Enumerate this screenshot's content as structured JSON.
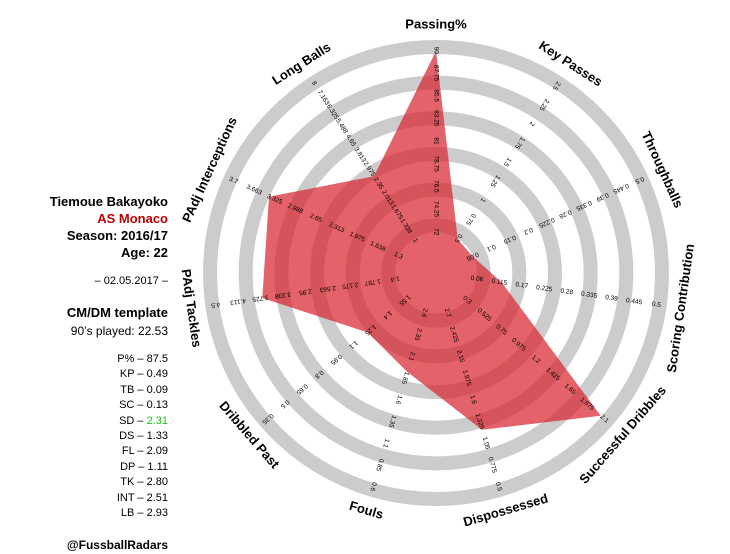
{
  "player": {
    "name": "Tiemoue Bakayoko",
    "team": "AS Monaco",
    "season": "Season: 2016/17",
    "age": "Age: 22",
    "date": "– 02.05.2017 –",
    "template": "CM/DM template",
    "played": "90’s played: 22.53",
    "handle": "@FussballRadars"
  },
  "stats": [
    {
      "label": "P% – ",
      "value": "87.5"
    },
    {
      "label": "KP – ",
      "value": "0.49"
    },
    {
      "label": "TB – ",
      "value": "0.09"
    },
    {
      "label": "SC – ",
      "value": "0.13"
    },
    {
      "label": "SD – ",
      "value": "2.31",
      "highlight": "#22c21a"
    },
    {
      "label": "DS – ",
      "value": "1.33"
    },
    {
      "label": "FL – ",
      "value": "2.09"
    },
    {
      "label": "DP – ",
      "value": "1.11"
    },
    {
      "label": "TK – ",
      "value": "2.80"
    },
    {
      "label": "INT – ",
      "value": "2.51"
    },
    {
      "label": "LB – ",
      "value": "2.93"
    }
  ],
  "chart_data": {
    "type": "radar",
    "ring_color": "#cccccc",
    "fill_color": "#d9202a",
    "fill_opacity": 0.7,
    "ring_count": 6,
    "axes": [
      {
        "label": "Passing%",
        "ticks": [
          "72",
          "74.25",
          "76.5",
          "78.75",
          "81",
          "83.25",
          "85.5",
          "87.75",
          "90"
        ],
        "value": 87.5
      },
      {
        "label": "Key Passes",
        "ticks": [
          "0.5",
          "0.75",
          "1",
          "1.25",
          "1.5",
          "1.75",
          "2",
          "2.25",
          "2.5"
        ],
        "value": 0.49
      },
      {
        "label": "Throughballs",
        "ticks": [
          "0.05",
          "0.1",
          "0.15",
          "0.2",
          "0.225",
          "0.28",
          "0.335",
          "0.39",
          "0.445",
          "0.5"
        ],
        "value": 0.09
      },
      {
        "label": "Scoring Contribution",
        "ticks": [
          "0.06",
          "0.115",
          "0.17",
          "0.225",
          "0.28",
          "0.335",
          "0.39",
          "0.445",
          "0.5"
        ],
        "value": 0.13
      },
      {
        "label": "Successful Dribbles",
        "ticks": [
          "0.3",
          "0.525",
          "0.75",
          "0.975",
          "1.2",
          "1.425",
          "1.65",
          "1.875",
          "2.1"
        ],
        "value": 2.31
      },
      {
        "label": "Dispossessed",
        "ticks": [
          "2.7",
          "2.425",
          "2.15",
          "1.875",
          "1.6",
          "1.325",
          "1.05",
          "0.775",
          "0.5"
        ],
        "value": 1.33
      },
      {
        "label": "Fouls",
        "ticks": [
          "2.6",
          "2.35",
          "2.1",
          "1.85",
          "1.6",
          "1.35",
          "1.1",
          "0.85",
          "0.6"
        ],
        "value": 2.09
      },
      {
        "label": "Dribbled Past",
        "ticks": [
          "1.55",
          "1.4",
          "1.25",
          "1.1",
          "0.95",
          "0.8",
          "0.65",
          "0.5",
          "0.35"
        ],
        "value": 1.11
      },
      {
        "label": "PAdj Tackles",
        "ticks": [
          "1.4",
          "1.787",
          "2.175",
          "2.563",
          "2.95",
          "3.338",
          "3.725",
          "4.113",
          "4.5"
        ],
        "value": 2.8
      },
      {
        "label": "PAdj Interceptions",
        "ticks": [
          "1.3",
          "1.638",
          "1.975",
          "2.313",
          "2.65",
          "2.988",
          "3.325",
          "3.663",
          "3.7"
        ],
        "value": 2.51
      },
      {
        "label": "Long Balls",
        "ticks": [
          "1",
          "1.338",
          "1.675",
          "2.013",
          "2.35",
          "2.975",
          "3.813",
          "4.65",
          "5.488",
          "6.325",
          "7.163",
          "8"
        ],
        "value": 2.93
      }
    ],
    "polygon_fractions": [
      0.99,
      0.09,
      0.09,
      0.22,
      0.97,
      0.7,
      0.4,
      0.34,
      0.76,
      0.8,
      0.46
    ]
  }
}
